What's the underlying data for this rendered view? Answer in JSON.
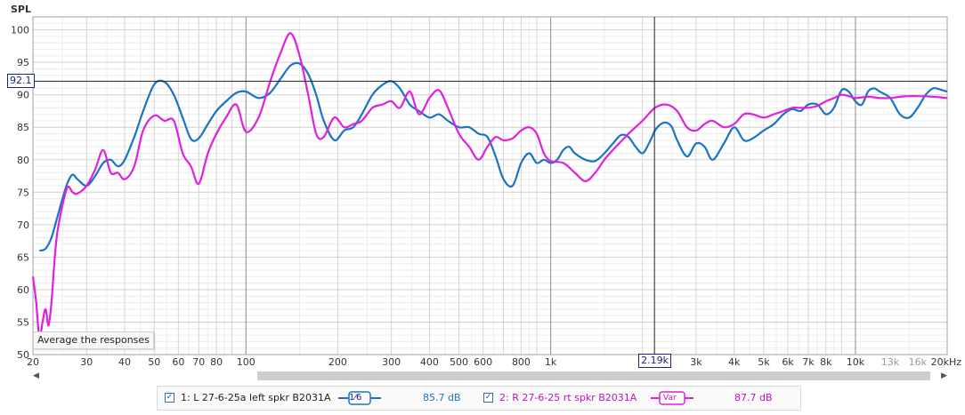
{
  "chart_data": {
    "type": "line",
    "ylabel": "SPL",
    "x_scale": "log",
    "xlim": [
      20,
      20000
    ],
    "ylim": [
      50,
      102
    ],
    "x_ticks": [
      {
        "v": 20,
        "label": "20"
      },
      {
        "v": 30,
        "label": "30"
      },
      {
        "v": 40,
        "label": "40"
      },
      {
        "v": 50,
        "label": "50"
      },
      {
        "v": 60,
        "label": "60"
      },
      {
        "v": 70,
        "label": "70"
      },
      {
        "v": 80,
        "label": "80"
      },
      {
        "v": 100,
        "label": "100"
      },
      {
        "v": 200,
        "label": "200"
      },
      {
        "v": 300,
        "label": "300"
      },
      {
        "v": 400,
        "label": "400"
      },
      {
        "v": 500,
        "label": "500"
      },
      {
        "v": 600,
        "label": "600"
      },
      {
        "v": 800,
        "label": "800"
      },
      {
        "v": 1000,
        "label": "1k"
      },
      {
        "v": 3000,
        "label": "3k"
      },
      {
        "v": 4000,
        "label": "4k"
      },
      {
        "v": 5000,
        "label": "5k"
      },
      {
        "v": 6000,
        "label": "6k"
      },
      {
        "v": 7000,
        "label": "7k"
      },
      {
        "v": 8000,
        "label": "8k"
      },
      {
        "v": 10000,
        "label": "10k"
      },
      {
        "v": 13000,
        "label": "13k",
        "light": true
      },
      {
        "v": 16000,
        "label": "16k",
        "light": true
      },
      {
        "v": 20000,
        "label": "20kHz"
      }
    ],
    "y_ticks": [
      50,
      55,
      60,
      65,
      70,
      75,
      80,
      85,
      90,
      95,
      100
    ],
    "grid": true,
    "cursor": {
      "x": 2190,
      "x_label": "2.19k",
      "y": 92.1,
      "y_label": "92.1"
    },
    "series": [
      {
        "name": "1: L 27-6-25a left spkr B2031A",
        "color": "#1a74c4",
        "x": [
          21,
          22,
          23,
          24,
          25,
          26,
          27,
          28,
          30,
          32,
          34,
          36,
          38,
          40,
          43,
          46,
          50,
          54,
          58,
          62,
          66,
          70,
          75,
          80,
          86,
          93,
          100,
          110,
          120,
          130,
          140,
          150,
          160,
          170,
          180,
          195,
          210,
          225,
          240,
          260,
          280,
          300,
          320,
          345,
          370,
          400,
          430,
          460,
          500,
          540,
          580,
          620,
          660,
          700,
          750,
          800,
          850,
          900,
          950,
          1000,
          1050,
          1100,
          1150,
          1200,
          1300,
          1400,
          1500,
          1600,
          1700,
          1800,
          1900,
          2000,
          2100,
          2200,
          2300,
          2400,
          2500,
          2600,
          2800,
          3000,
          3200,
          3400,
          3700,
          4000,
          4300,
          4600,
          5000,
          5400,
          5800,
          6200,
          6600,
          7000,
          7500,
          8000,
          8500,
          9000,
          9500,
          10000,
          10500,
          11000,
          11500,
          12000,
          13000,
          14000,
          15000,
          16000,
          17000,
          18000,
          19000,
          20000
        ],
        "y": [
          66,
          66.3,
          68,
          71,
          74,
          76.5,
          77.7,
          77,
          76,
          77.5,
          79.5,
          80,
          79,
          80,
          83.5,
          87.5,
          91.6,
          92,
          90,
          86.5,
          83.2,
          83.3,
          85.5,
          87.5,
          89,
          90.3,
          90.5,
          89.5,
          90.3,
          92.5,
          94.5,
          94.8,
          93.2,
          90,
          86,
          83,
          84.5,
          85,
          87,
          90,
          91.5,
          92.1,
          91,
          88.5,
          87.5,
          86.5,
          87,
          86,
          85,
          85,
          84,
          83.5,
          80.5,
          77,
          76,
          79.5,
          81,
          79.5,
          80,
          79.5,
          80,
          81.5,
          82,
          81,
          80,
          79.8,
          81,
          82.5,
          83.8,
          83.5,
          82,
          81,
          82.5,
          84.5,
          85.5,
          85.7,
          85,
          83,
          80.5,
          82.5,
          82,
          80,
          82.5,
          85,
          83,
          83.3,
          84.5,
          85.5,
          87,
          87.8,
          87.5,
          88.5,
          88.5,
          87,
          88,
          90.7,
          90.5,
          89,
          88.5,
          90.5,
          91,
          90.5,
          89.5,
          87,
          86.5,
          88,
          90,
          91,
          90.8,
          90.5
        ]
      },
      {
        "name": "2: R 27-6-25 rt spkr B2031A",
        "color": "#e020e0",
        "x": [
          20,
          20.5,
          21,
          21.5,
          22,
          22.5,
          23,
          23.5,
          24,
          25,
          26,
          27,
          28,
          30,
          32,
          34,
          36,
          38,
          40,
          43,
          46,
          50,
          54,
          58,
          62,
          66,
          70,
          75,
          80,
          86,
          93,
          100,
          110,
          120,
          130,
          140,
          150,
          160,
          170,
          180,
          195,
          210,
          225,
          240,
          260,
          280,
          300,
          320,
          345,
          370,
          400,
          430,
          460,
          500,
          540,
          580,
          620,
          660,
          700,
          750,
          800,
          850,
          900,
          950,
          1000,
          1100,
          1200,
          1300,
          1400,
          1500,
          1600,
          1800,
          2000,
          2200,
          2400,
          2600,
          2800,
          3000,
          3200,
          3400,
          3700,
          4000,
          4300,
          4600,
          5000,
          5400,
          5800,
          6200,
          6600,
          7000,
          7500,
          8000,
          8500,
          9000,
          9500,
          10000,
          11000,
          12000,
          13000,
          14000,
          15000,
          16000,
          18000,
          20000
        ],
        "y": [
          62,
          58,
          52.5,
          55,
          57,
          54.5,
          58,
          64,
          68.5,
          73,
          75.8,
          75,
          74.8,
          76,
          78.5,
          81.5,
          78,
          78,
          77,
          79,
          84.5,
          86.8,
          86,
          86,
          81,
          79,
          76.3,
          81,
          84,
          86.5,
          88.5,
          84.3,
          86.5,
          92,
          96.5,
          99.5,
          96,
          90,
          84,
          83.5,
          86.5,
          85,
          85.5,
          86,
          88,
          88.5,
          89,
          88,
          90.5,
          87,
          89.5,
          90.7,
          88,
          84,
          82,
          80,
          82,
          83.5,
          83,
          83.3,
          84.5,
          85,
          84,
          81,
          79.8,
          79.5,
          78,
          76.7,
          78,
          80,
          81.5,
          84,
          86,
          88,
          88.5,
          87.5,
          85,
          84.5,
          85.5,
          86,
          85,
          85.5,
          87,
          87,
          86.5,
          87,
          87.5,
          88,
          88,
          88,
          88.3,
          89,
          89.5,
          90,
          89.8,
          89.5,
          89.7,
          89.5,
          89.5,
          89.7,
          89.8,
          89.8,
          89.7,
          89.5
        ]
      }
    ]
  },
  "ui": {
    "tooltip": "Average the responses",
    "legend": [
      {
        "checked": true,
        "label": "1: L 27-6-25a left spkr B2031A",
        "badge": "1⁄6",
        "value": "85.7 dB",
        "color": "#1a74c4"
      },
      {
        "checked": true,
        "label": "2: R 27-6-25 rt spkr B2031A",
        "badge": "Var",
        "value": "87.7 dB",
        "color": "#e020e0"
      }
    ]
  }
}
